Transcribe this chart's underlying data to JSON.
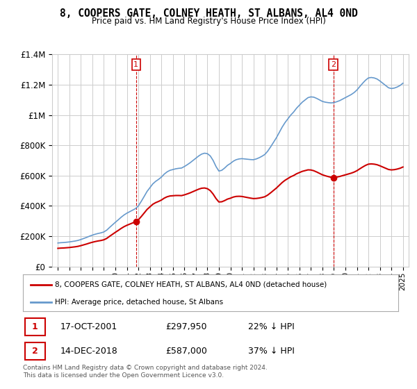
{
  "title": "8, COOPERS GATE, COLNEY HEATH, ST ALBANS, AL4 0ND",
  "subtitle": "Price paid vs. HM Land Registry's House Price Index (HPI)",
  "legend_label_red": "8, COOPERS GATE, COLNEY HEATH, ST ALBANS, AL4 0ND (detached house)",
  "legend_label_blue": "HPI: Average price, detached house, St Albans",
  "annotation1_date": "17-OCT-2001",
  "annotation1_price": "£297,950",
  "annotation1_hpi": "22% ↓ HPI",
  "annotation1_year": 2001.8,
  "annotation2_date": "14-DEC-2018",
  "annotation2_price": "£587,000",
  "annotation2_hpi": "37% ↓ HPI",
  "annotation2_year": 2018.95,
  "footnote": "Contains HM Land Registry data © Crown copyright and database right 2024.\nThis data is licensed under the Open Government Licence v3.0.",
  "ylim": [
    0,
    1400000
  ],
  "xlim_start": 1994.5,
  "xlim_end": 2025.5,
  "red_color": "#cc0000",
  "blue_color": "#6699cc",
  "background_color": "#ffffff",
  "grid_color": "#cccccc"
}
